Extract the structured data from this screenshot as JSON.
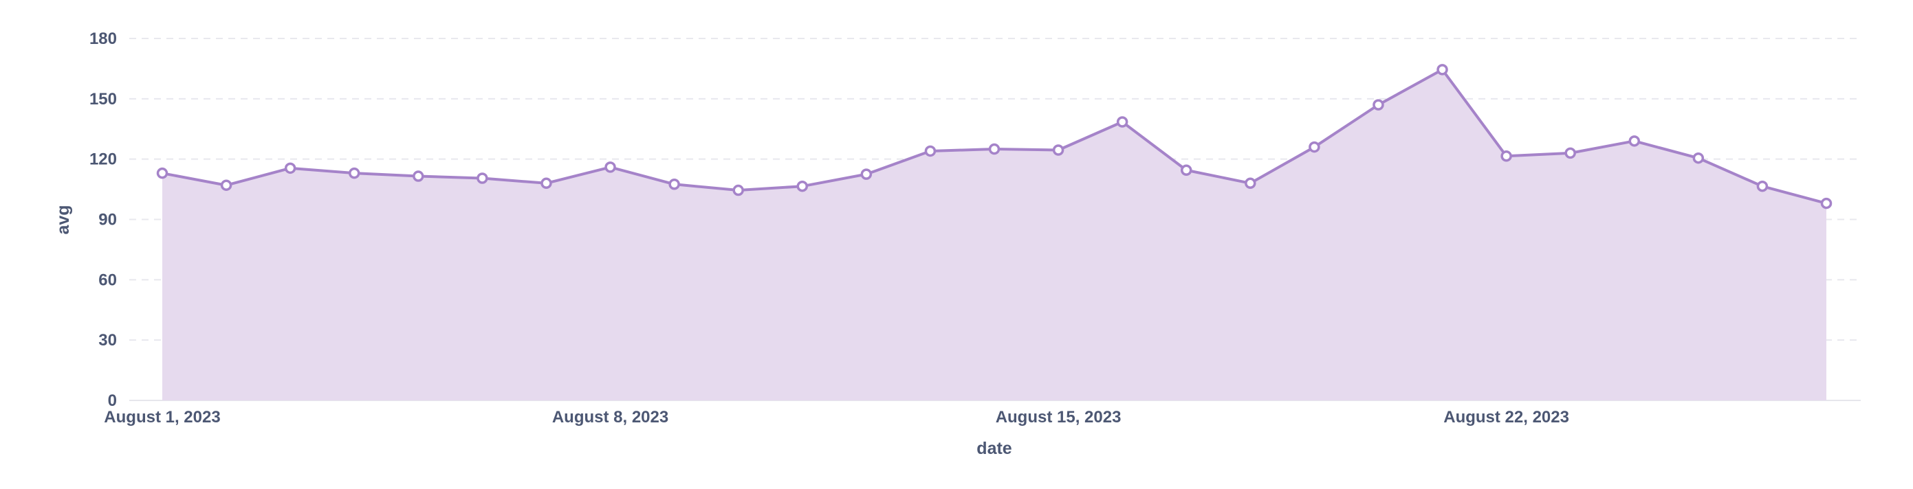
{
  "chart_data": {
    "type": "area",
    "xlabel": "date",
    "ylabel": "avg",
    "ylim": [
      0,
      180
    ],
    "y_ticks": [
      0,
      30,
      60,
      90,
      120,
      150,
      180
    ],
    "x_tick_labels": [
      "August 1, 2023",
      "August 8, 2023",
      "August 15, 2023",
      "August 22, 2023"
    ],
    "x_tick_dates": [
      "2023-08-01",
      "2023-08-08",
      "2023-08-15",
      "2023-08-22"
    ],
    "xlim": [
      "2023-08-01",
      "2023-08-27"
    ],
    "grid": true,
    "legend": "none",
    "colors": {
      "line": "#a583c9",
      "fill": "#e6daee",
      "marker_fill": "#ffffff"
    },
    "x": [
      "2023-08-01",
      "2023-08-02",
      "2023-08-03",
      "2023-08-04",
      "2023-08-05",
      "2023-08-06",
      "2023-08-07",
      "2023-08-08",
      "2023-08-09",
      "2023-08-10",
      "2023-08-11",
      "2023-08-12",
      "2023-08-13",
      "2023-08-14",
      "2023-08-15",
      "2023-08-16",
      "2023-08-17",
      "2023-08-18",
      "2023-08-19",
      "2023-08-20",
      "2023-08-21",
      "2023-08-22",
      "2023-08-23",
      "2023-08-24",
      "2023-08-25",
      "2023-08-26",
      "2023-08-27"
    ],
    "series": [
      {
        "values": [
          113,
          107,
          115.5,
          113,
          111.5,
          110.5,
          108,
          116,
          107.5,
          104.5,
          106.5,
          112.5,
          124,
          125,
          124.5,
          138.5,
          114.5,
          108,
          126,
          147,
          164.5,
          121.5,
          123,
          129,
          120.5,
          106.5,
          98
        ]
      }
    ]
  }
}
